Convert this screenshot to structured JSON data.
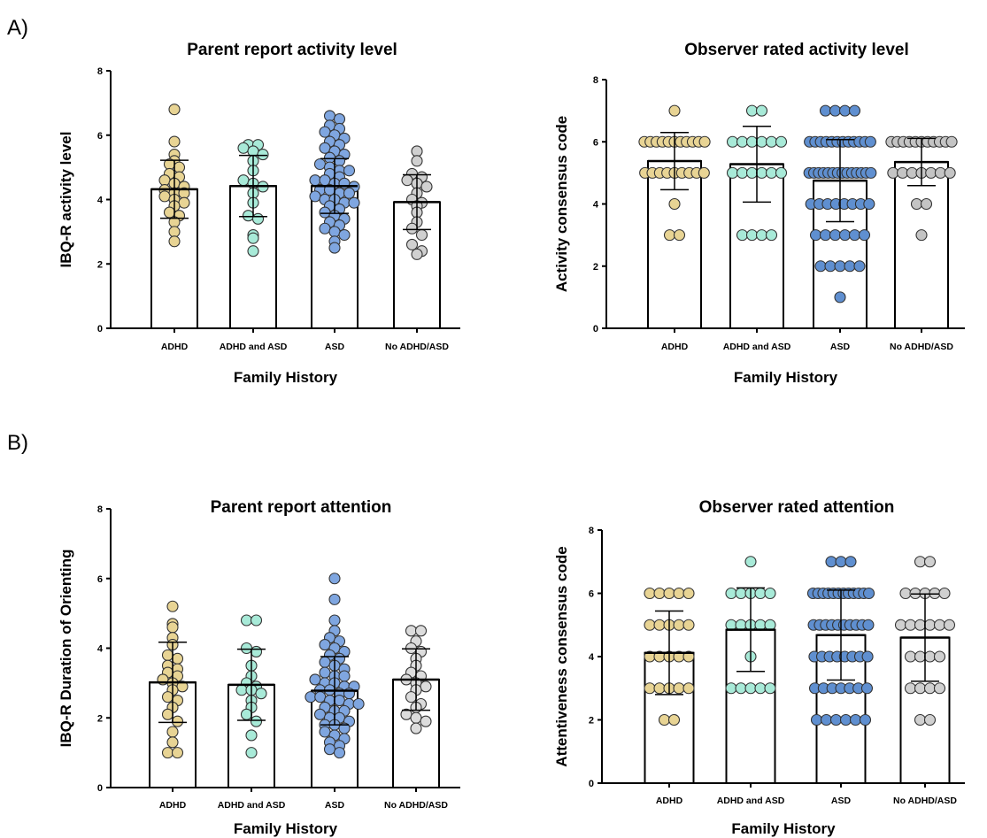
{
  "panel_labels": {
    "a": "A)",
    "b": "B)"
  },
  "chart_data": [
    {
      "type": "bar",
      "title": "Parent report activity level",
      "xlabel": "Family History",
      "ylabel": "IBQ-R activity level",
      "ylim": [
        0,
        8
      ],
      "yticks": [
        "0",
        "2",
        "4",
        "6",
        "8"
      ],
      "categories": [
        "ADHD",
        "ADHD and ASD",
        "ASD",
        "No ADHD/ASD"
      ],
      "colors": [
        "#e8d494",
        "#a8ead8",
        "#7fa6e0",
        "#d0d0d0"
      ],
      "series": [
        {
          "values": [
            4.32,
            4.42,
            4.42,
            3.92
          ],
          "error": [
            0.9,
            0.95,
            0.85,
            0.85
          ],
          "points": [
            [
              6.8,
              5.8,
              5.4,
              5.2,
              5.1,
              5.0,
              4.8,
              4.7,
              4.6,
              4.5,
              4.4,
              4.3,
              4.2,
              4.2,
              4.1,
              4.0,
              3.9,
              3.8,
              3.6,
              3.5,
              3.3,
              3.0,
              2.7
            ],
            [
              5.7,
              5.7,
              5.6,
              5.5,
              5.4,
              5.2,
              4.9,
              4.6,
              4.5,
              4.4,
              4.2,
              3.9,
              3.5,
              3.4,
              2.9,
              2.8,
              2.4
            ],
            [
              6.6,
              6.5,
              6.3,
              6.2,
              6.1,
              6.0,
              5.9,
              5.8,
              5.7,
              5.6,
              5.5,
              5.4,
              5.3,
              5.2,
              5.1,
              5.0,
              4.9,
              4.9,
              4.8,
              4.7,
              4.6,
              4.6,
              4.5,
              4.5,
              4.4,
              4.3,
              4.3,
              4.2,
              4.2,
              4.1,
              4.0,
              4.0,
              3.9,
              3.9,
              3.8,
              3.7,
              3.6,
              3.5,
              3.4,
              3.3,
              3.2,
              3.1,
              3.0,
              2.9,
              2.7,
              2.5
            ],
            [
              5.5,
              5.2,
              4.8,
              4.7,
              4.6,
              4.5,
              4.4,
              4.2,
              4.0,
              3.9,
              3.8,
              3.6,
              3.3,
              3.1,
              2.9,
              2.6,
              2.4,
              2.3
            ]
          ]
        }
      ]
    },
    {
      "type": "bar",
      "title": "Observer rated activity level",
      "xlabel": "Family History",
      "ylabel": "Activity consensus code",
      "ylim": [
        0,
        8
      ],
      "yticks": [
        "0",
        "2",
        "4",
        "6",
        "8"
      ],
      "categories": [
        "ADHD",
        "ADHD and ASD",
        "ASD",
        "No ADHD/ASD"
      ],
      "colors": [
        "#e8d494",
        "#a8ead8",
        "#5f8fd0",
        "#c4c4c4"
      ],
      "series": [
        {
          "values": [
            5.38,
            5.28,
            4.75,
            5.35
          ],
          "error": [
            0.92,
            1.22,
            1.32,
            0.76
          ],
          "points": [
            [
              7,
              6,
              6,
              6,
              6,
              6,
              6,
              6,
              6,
              6,
              6,
              6,
              5,
              5,
              5,
              5,
              5,
              5,
              5,
              5,
              5,
              4,
              3,
              3
            ],
            [
              7,
              7,
              6,
              6,
              6,
              6,
              6,
              6,
              5,
              5,
              5,
              5,
              5,
              5,
              3,
              3,
              3,
              3
            ],
            [
              7,
              7,
              7,
              7,
              6,
              6,
              6,
              6,
              6,
              6,
              6,
              6,
              6,
              6,
              6,
              6,
              5,
              5,
              5,
              5,
              5,
              5,
              5,
              5,
              5,
              5,
              5,
              5,
              5,
              5,
              4,
              4,
              4,
              4,
              4,
              4,
              4,
              4,
              3,
              3,
              3,
              3,
              3,
              3,
              2,
              2,
              2,
              2,
              2,
              1
            ],
            [
              6,
              6,
              6,
              6,
              6,
              6,
              6,
              6,
              6,
              6,
              6,
              5,
              5,
              5,
              5,
              5,
              5,
              5,
              4,
              4,
              3
            ]
          ]
        }
      ]
    },
    {
      "type": "bar",
      "title": "Parent report attention",
      "xlabel": "Family History",
      "ylabel": "IBQ-R Duration of Orienting",
      "ylim": [
        0,
        8
      ],
      "yticks": [
        "0",
        "2",
        "4",
        "6",
        "8"
      ],
      "categories": [
        "ADHD",
        "ADHD and ASD",
        "ASD",
        "No ADHD/ASD"
      ],
      "colors": [
        "#e8d494",
        "#a8ead8",
        "#7fa6e0",
        "#dcdcdc"
      ],
      "series": [
        {
          "values": [
            3.02,
            2.95,
            2.78,
            3.1
          ],
          "error": [
            1.15,
            1.02,
            0.98,
            0.88
          ],
          "points": [
            [
              5.2,
              4.7,
              4.6,
              4.3,
              4.1,
              3.8,
              3.7,
              3.5,
              3.4,
              3.3,
              3.2,
              3.1,
              3.0,
              2.9,
              2.8,
              2.6,
              2.5,
              2.3,
              2.1,
              1.9,
              1.6,
              1.3,
              1.0,
              1.0
            ],
            [
              4.8,
              4.8,
              4.0,
              3.9,
              3.5,
              3.2,
              3.0,
              2.9,
              2.8,
              2.8,
              2.7,
              2.5,
              2.3,
              2.1,
              1.9,
              1.5,
              1.0
            ],
            [
              6.0,
              5.4,
              4.8,
              4.5,
              4.3,
              4.2,
              4.1,
              4.0,
              3.9,
              3.8,
              3.7,
              3.6,
              3.5,
              3.4,
              3.3,
              3.2,
              3.2,
              3.1,
              3.0,
              3.0,
              2.9,
              2.9,
              2.8,
              2.8,
              2.7,
              2.7,
              2.6,
              2.6,
              2.5,
              2.5,
              2.4,
              2.4,
              2.3,
              2.2,
              2.2,
              2.1,
              2.0,
              2.0,
              1.9,
              1.8,
              1.8,
              1.7,
              1.6,
              1.5,
              1.4,
              1.3,
              1.2,
              1.1,
              1.0
            ],
            [
              4.5,
              4.5,
              4.2,
              4.0,
              3.9,
              3.7,
              3.5,
              3.3,
              3.2,
              3.1,
              3.0,
              2.9,
              2.8,
              2.6,
              2.4,
              2.3,
              2.1,
              2.0,
              1.9,
              1.7
            ]
          ]
        }
      ]
    },
    {
      "type": "bar",
      "title": "Observer rated attention",
      "xlabel": "Family History",
      "ylabel": "Attentiveness consensus code",
      "ylim": [
        0,
        8
      ],
      "yticks": [
        "0",
        "2",
        "4",
        "6",
        "8"
      ],
      "categories": [
        "ADHD",
        "ADHD and ASD",
        "ASD",
        "No ADHD/ASD"
      ],
      "colors": [
        "#e8d494",
        "#a8ead8",
        "#5f8fd0",
        "#d0d0d0"
      ],
      "series": [
        {
          "values": [
            4.12,
            4.85,
            4.68,
            4.6
          ],
          "error": [
            1.32,
            1.32,
            1.42,
            1.38
          ],
          "points": [
            [
              6,
              6,
              6,
              6,
              6,
              5,
              5,
              5,
              5,
              5,
              4,
              4,
              4,
              4,
              4,
              3,
              3,
              3,
              3,
              3,
              2,
              2
            ],
            [
              7,
              6,
              6,
              6,
              6,
              6,
              5,
              5,
              5,
              5,
              5,
              4,
              3,
              3,
              3,
              3,
              3
            ],
            [
              7,
              7,
              7,
              6,
              6,
              6,
              6,
              6,
              6,
              6,
              6,
              6,
              6,
              6,
              6,
              5,
              5,
              5,
              5,
              5,
              5,
              5,
              5,
              5,
              5,
              4,
              4,
              4,
              4,
              4,
              4,
              4,
              4,
              3,
              3,
              3,
              3,
              3,
              3,
              3,
              2,
              2,
              2,
              2,
              2,
              2
            ],
            [
              7,
              7,
              6,
              6,
              6,
              6,
              6,
              5,
              5,
              5,
              5,
              5,
              5,
              4,
              4,
              4,
              4,
              3,
              3,
              3,
              3,
              2,
              2
            ]
          ]
        }
      ]
    }
  ]
}
